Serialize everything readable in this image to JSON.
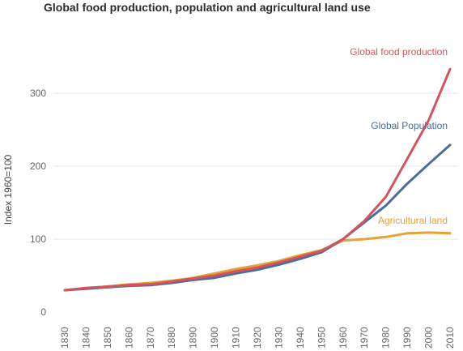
{
  "chart_data": {
    "type": "line",
    "title": "Global food production, population and agricultural land use",
    "xlabel": "",
    "ylabel": "Index 1960=100",
    "x": [
      1830,
      1840,
      1850,
      1860,
      1870,
      1880,
      1890,
      1900,
      1910,
      1920,
      1930,
      1940,
      1950,
      1960,
      1970,
      1980,
      1990,
      2000,
      2010
    ],
    "x_ticks": [
      "1830",
      "1840",
      "1850",
      "1860",
      "1870",
      "1880",
      "1890",
      "1900",
      "1910",
      "1920",
      "1930",
      "1940",
      "1950",
      "1960",
      "1970",
      "1980",
      "1990",
      "2000",
      "2010"
    ],
    "y_ticks": [
      "0",
      "100",
      "200",
      "300"
    ],
    "ylim": [
      0,
      340
    ],
    "grid": true,
    "legend": "inline labels at line ends",
    "series": [
      {
        "name": "Global food production",
        "color": "#d4545e",
        "values": [
          30,
          33,
          35,
          37,
          38,
          42,
          46,
          50,
          56,
          61,
          68,
          76,
          84,
          100,
          125,
          158,
          210,
          263,
          333
        ]
      },
      {
        "name": "Global Population",
        "color": "#4a6e9c",
        "values": [
          30,
          32,
          34,
          36,
          37,
          40,
          44,
          47,
          53,
          58,
          65,
          73,
          82,
          100,
          123,
          146,
          176,
          203,
          229
        ]
      },
      {
        "name": "Agricultural land",
        "color": "#e8a03a",
        "values": [
          30,
          33,
          35,
          38,
          40,
          43,
          47,
          53,
          59,
          64,
          70,
          78,
          85,
          98,
          100,
          103,
          108,
          109,
          108
        ]
      }
    ]
  }
}
